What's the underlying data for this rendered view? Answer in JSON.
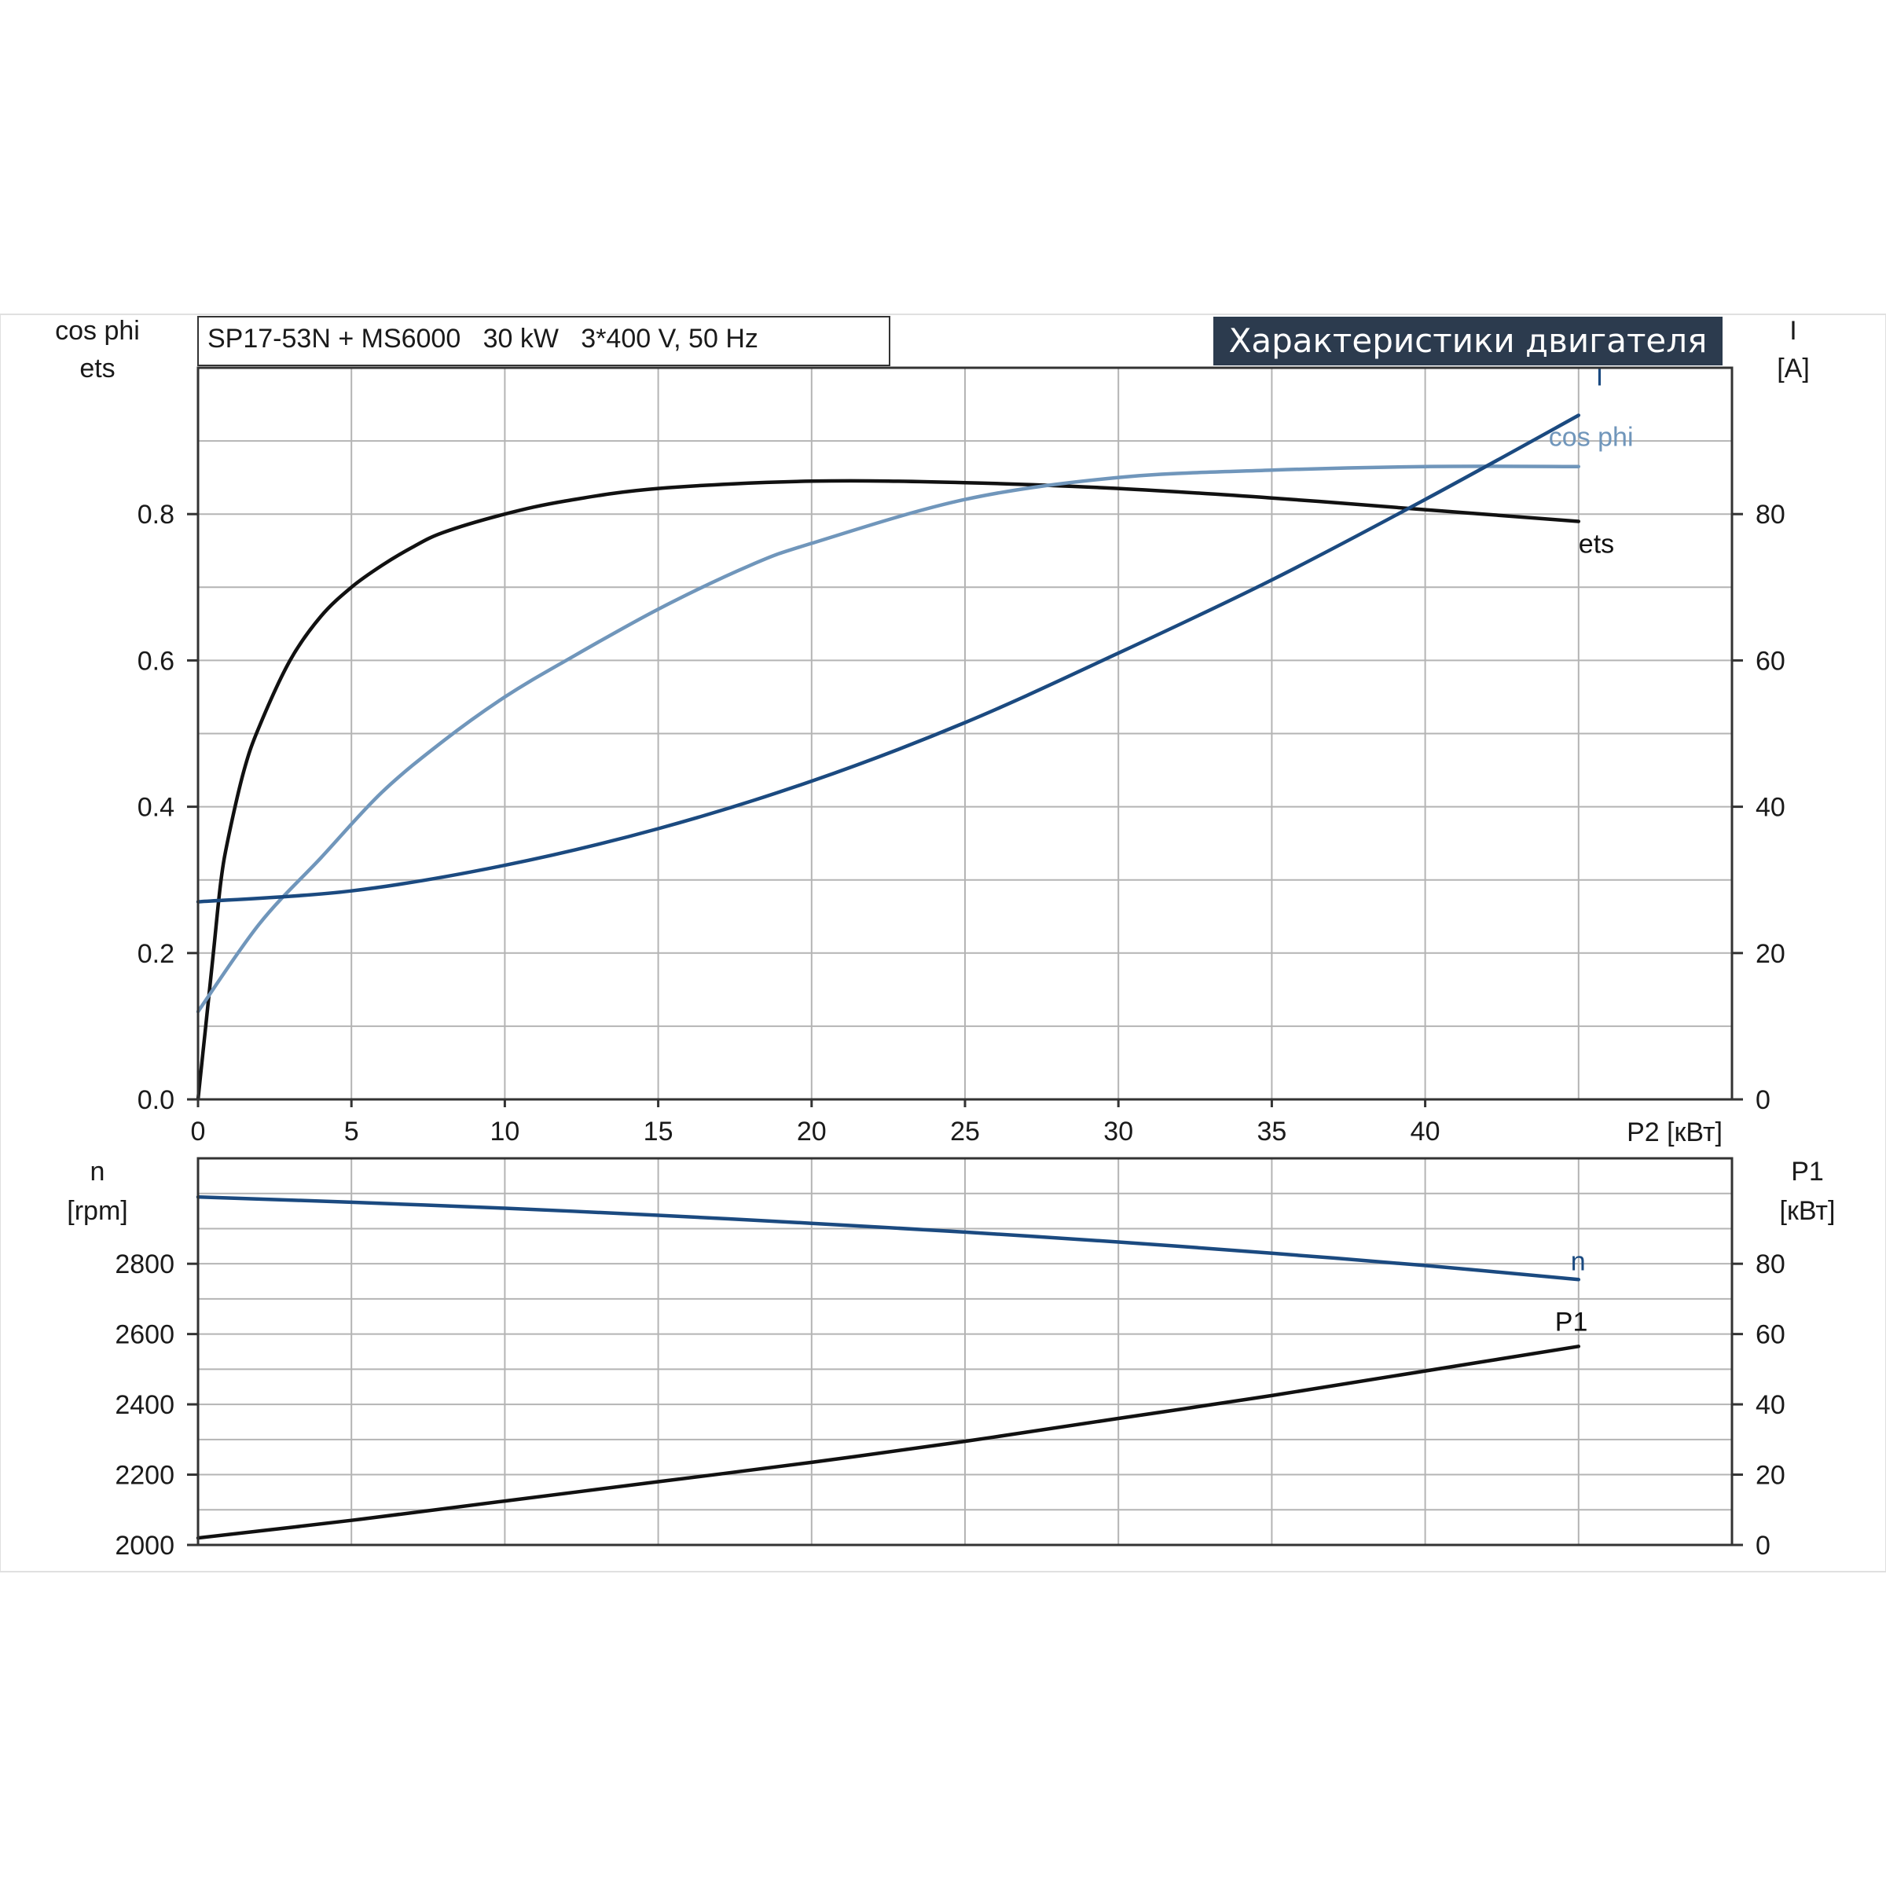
{
  "header": {
    "model_text": "SP17-53N + MS6000   30 kW   3*400 V, 50 Hz",
    "title": "Характеристики двигателя"
  },
  "colors": {
    "current": "#1b4a80",
    "cos_phi": "#7096bb",
    "eta": "#111111",
    "speed": "#1b4a80",
    "p1": "#111111",
    "title_bg": "#2c3b4e"
  },
  "chart_data": [
    {
      "type": "line",
      "title": "Характеристики двигателя",
      "xlabel": "P2 [кВт]",
      "ylabel_left": [
        "cos phi",
        "ets"
      ],
      "ylabel_right": [
        "I",
        "[A]"
      ],
      "xlim": [
        0,
        50
      ],
      "ylim_left": [
        0,
        1.0
      ],
      "ylim_right": [
        0,
        100
      ],
      "x_ticks": [
        0,
        5,
        10,
        15,
        20,
        25,
        30,
        35,
        40
      ],
      "x_tick_labels": [
        "0",
        "5",
        "10",
        "15",
        "20",
        "25",
        "30",
        "35",
        "40"
      ],
      "y_left_ticks": [
        0.0,
        0.2,
        0.4,
        0.6,
        0.8
      ],
      "y_left_tick_labels": [
        "0.0",
        "0.2",
        "0.4",
        "0.6",
        "0.8"
      ],
      "y_right_ticks": [
        0,
        20,
        40,
        60,
        80
      ],
      "y_right_tick_labels": [
        "0",
        "20",
        "40",
        "60",
        "80"
      ],
      "grid": true,
      "series": [
        {
          "name": "ets",
          "axis": "left",
          "label": "ets",
          "x": [
            0,
            0.25,
            0.5,
            0.75,
            1,
            1.5,
            2,
            3,
            4,
            5,
            6,
            7,
            8,
            10,
            12,
            15,
            20,
            25,
            30,
            35,
            40,
            45
          ],
          "y": [
            0.0,
            0.1,
            0.2,
            0.3,
            0.36,
            0.45,
            0.51,
            0.6,
            0.66,
            0.7,
            0.73,
            0.755,
            0.775,
            0.8,
            0.818,
            0.835,
            0.845,
            0.843,
            0.835,
            0.822,
            0.806,
            0.79
          ]
        },
        {
          "name": "cos phi",
          "axis": "left",
          "label": "cos phi",
          "x": [
            0,
            2,
            4,
            6,
            8,
            10,
            12,
            15,
            18,
            20,
            25,
            30,
            35,
            40,
            45
          ],
          "y": [
            0.12,
            0.24,
            0.33,
            0.42,
            0.49,
            0.55,
            0.6,
            0.67,
            0.73,
            0.76,
            0.82,
            0.85,
            0.86,
            0.865,
            0.865
          ]
        },
        {
          "name": "I",
          "axis": "right",
          "label": "I",
          "x": [
            0,
            5,
            10,
            15,
            20,
            25,
            30,
            35,
            40,
            45
          ],
          "y": [
            27,
            28.5,
            32,
            37,
            43.5,
            51.5,
            61,
            71,
            82,
            93.5
          ]
        }
      ]
    },
    {
      "type": "line",
      "xlim": [
        0,
        50
      ],
      "ylabel_left": [
        "n",
        "[rpm]"
      ],
      "ylabel_right": [
        "P1",
        "[кВт]"
      ],
      "ylim_left": [
        2000,
        3100
      ],
      "ylim_right": [
        0,
        110
      ],
      "y_left_ticks": [
        2000,
        2200,
        2400,
        2600,
        2800
      ],
      "y_left_tick_labels": [
        "2000",
        "2200",
        "2400",
        "2600",
        "2800"
      ],
      "y_right_ticks": [
        0,
        20,
        40,
        60,
        80
      ],
      "y_right_tick_labels": [
        "0",
        "20",
        "40",
        "60",
        "80"
      ],
      "grid": true,
      "series": [
        {
          "name": "n",
          "axis": "left",
          "label": "n",
          "x": [
            0,
            5,
            10,
            15,
            20,
            25,
            30,
            35,
            40,
            45
          ],
          "y": [
            2990,
            2975,
            2958,
            2938,
            2915,
            2890,
            2862,
            2830,
            2795,
            2755
          ]
        },
        {
          "name": "P1",
          "axis": "right",
          "label": "P1",
          "x": [
            0,
            5,
            10,
            15,
            20,
            25,
            30,
            35,
            40,
            45
          ],
          "y": [
            2,
            7,
            12.5,
            18,
            23.5,
            29.5,
            36,
            42.5,
            49.5,
            56.5
          ]
        }
      ]
    }
  ]
}
